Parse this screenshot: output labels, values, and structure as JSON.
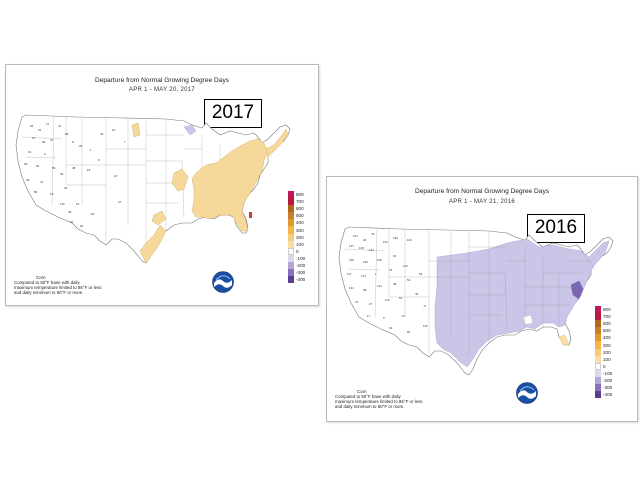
{
  "maps": [
    {
      "id": "2017",
      "title": "Departure from Normal Growing Degree Days",
      "subtitle": "APR 1 - MAY 20, 2017",
      "year_label": "2017",
      "footer": {
        "line1": "Corn",
        "line2": "Computed to 50°F base with daily",
        "line3": "maximum temperature limited to 86°F or less",
        "line4": "and daily minimum to 50°F or more."
      },
      "station_values": [
        "26",
        "31",
        "11",
        "41",
        "61",
        "69",
        "47",
        "-48",
        "8",
        "31",
        "2",
        "-36",
        "1",
        "64",
        "81",
        "89",
        "36",
        "74",
        "39",
        "48",
        "86",
        "19",
        "33",
        "-19",
        "8",
        "10",
        "27",
        "16",
        "-52",
        "39",
        "115",
        "87",
        "60",
        "43",
        "61",
        "7"
      ],
      "highlight_color": "#f6d99a"
    },
    {
      "id": "2016",
      "title": "Departure from Normal Growing Degree Days",
      "subtitle": "APR 1 - MAY 21, 2016",
      "year_label": "2016",
      "footer": {
        "line1": "Corn",
        "line2": "Computed to 50°F base with daily",
        "line3": "maximum temperature limited to 86°F or less",
        "line4": "and daily minimum to 50°F or more."
      },
      "station_values": [
        "107",
        "93",
        "79",
        "137",
        "129",
        "131",
        "134",
        "120",
        "103",
        "215",
        "155",
        "108",
        "66",
        "117",
        "174",
        "1",
        "73",
        "110",
        "131",
        "95",
        "114",
        "48",
        "53",
        "65",
        "31",
        "27",
        "110",
        "51",
        "45",
        "-5",
        "17",
        "9",
        "-27",
        "91",
        "66",
        "110"
      ],
      "highlight_color": "#c9c6e8"
    }
  ],
  "legend": {
    "items": [
      {
        "label": "800",
        "color": "#c2185b"
      },
      {
        "label": "700",
        "color": "#b71c3f"
      },
      {
        "label": "600",
        "color": "#b5651d"
      },
      {
        "label": "500",
        "color": "#c87f2b"
      },
      {
        "label": "400",
        "color": "#e0982f"
      },
      {
        "label": "300",
        "color": "#f2b54a"
      },
      {
        "label": "200",
        "color": "#f6cb7b"
      },
      {
        "label": "100",
        "color": "#f8dda6"
      },
      {
        "label": "0",
        "color": "#ffffff"
      },
      {
        "label": "-100",
        "color": "#dcd9ef"
      },
      {
        "label": "-200",
        "color": "#b3a8d6"
      },
      {
        "label": "-300",
        "color": "#8a6fbc"
      },
      {
        "label": "-400",
        "color": "#5b3d91"
      }
    ],
    "bottom_color": "#555555"
  }
}
